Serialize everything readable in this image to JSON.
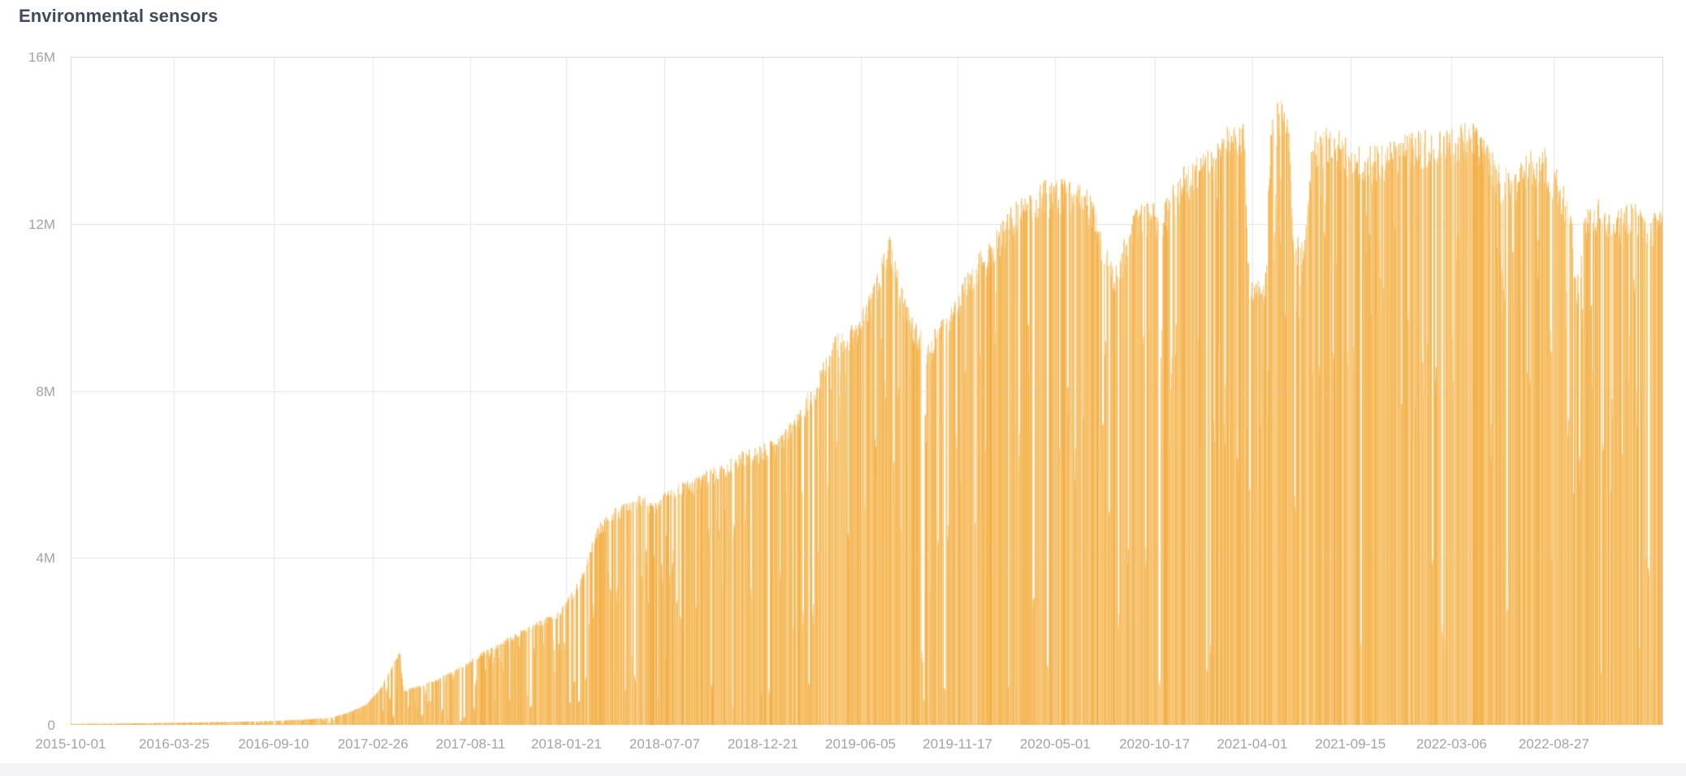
{
  "panel": {
    "title": "Environmental sensors"
  },
  "chart_data": {
    "type": "bar",
    "title": "Environmental sensors",
    "legend": false,
    "grid": true,
    "x_axis": {
      "type": "time-category-daily",
      "start": "2015-10-01",
      "end": "2023-03-01",
      "tick_interval_days": 168,
      "tick_labels": [
        "2015-10-01",
        "2016-03-25",
        "2016-09-10",
        "2017-02-26",
        "2017-08-11",
        "2018-01-21",
        "2018-07-07",
        "2018-12-21",
        "2019-06-05",
        "2019-11-17",
        "2020-05-01",
        "2020-10-17",
        "2021-04-01",
        "2021-09-15",
        "2022-03-06",
        "2022-08-27"
      ]
    },
    "y_axis": {
      "tick_labels": [
        "0",
        "4M",
        "8M",
        "12M",
        "16M"
      ],
      "tick_values_millions": [
        0,
        4,
        8,
        12,
        16
      ],
      "ylim_millions": [
        0,
        16
      ]
    },
    "series": [
      {
        "name": "Environmental sensors",
        "unit": "count",
        "values_are": "daily bars; envelope_points_millions samples the upper envelope [date, millions]",
        "envelope_points_millions": [
          [
            "2015-10-01",
            0.02
          ],
          [
            "2015-12-01",
            0.03
          ],
          [
            "2016-02-01",
            0.04
          ],
          [
            "2016-05-01",
            0.06
          ],
          [
            "2016-08-01",
            0.08
          ],
          [
            "2016-09-15",
            0.1
          ],
          [
            "2016-11-01",
            0.13
          ],
          [
            "2016-12-15",
            0.17
          ],
          [
            "2017-01-15",
            0.3
          ],
          [
            "2017-02-15",
            0.5
          ],
          [
            "2017-03-10",
            0.9
          ],
          [
            "2017-04-12",
            1.81
          ],
          [
            "2017-04-18",
            0.83
          ],
          [
            "2017-05-15",
            0.95
          ],
          [
            "2017-06-15",
            1.1
          ],
          [
            "2017-07-20",
            1.38
          ],
          [
            "2017-09-05",
            1.8
          ],
          [
            "2017-10-20",
            2.15
          ],
          [
            "2017-12-05",
            2.5
          ],
          [
            "2018-01-10",
            2.75
          ],
          [
            "2018-02-15",
            3.6
          ],
          [
            "2018-03-15",
            4.8
          ],
          [
            "2018-04-20",
            5.3
          ],
          [
            "2018-05-25",
            5.55
          ],
          [
            "2018-06-15",
            5.35
          ],
          [
            "2018-07-10",
            5.65
          ],
          [
            "2018-09-05",
            6.0
          ],
          [
            "2018-10-20",
            6.35
          ],
          [
            "2018-11-15",
            6.6
          ],
          [
            "2018-12-25",
            6.75
          ],
          [
            "2019-01-20",
            6.95
          ],
          [
            "2019-02-20",
            7.6
          ],
          [
            "2019-03-20",
            8.35
          ],
          [
            "2019-04-25",
            9.4
          ],
          [
            "2019-05-25",
            9.65
          ],
          [
            "2019-06-10",
            10.1
          ],
          [
            "2019-07-05",
            10.9
          ],
          [
            "2019-07-22",
            11.9
          ],
          [
            "2019-08-05",
            11.0
          ],
          [
            "2019-09-01",
            9.8
          ],
          [
            "2019-09-25",
            9.2
          ],
          [
            "2019-11-01",
            9.95
          ],
          [
            "2019-12-10",
            11.1
          ],
          [
            "2020-01-10",
            11.65
          ],
          [
            "2020-02-28",
            12.7
          ],
          [
            "2020-04-10",
            13.05
          ],
          [
            "2020-06-20",
            13.1
          ],
          [
            "2020-07-20",
            11.8
          ],
          [
            "2020-08-10",
            11.0
          ],
          [
            "2020-09-15",
            12.5
          ],
          [
            "2020-11-01",
            12.55
          ],
          [
            "2020-12-01",
            13.35
          ],
          [
            "2021-01-10",
            13.8
          ],
          [
            "2021-02-20",
            14.4
          ],
          [
            "2021-03-18",
            14.5
          ],
          [
            "2021-03-26",
            10.9
          ],
          [
            "2021-04-22",
            10.5
          ],
          [
            "2021-05-03",
            14.7
          ],
          [
            "2021-05-20",
            15.2
          ],
          [
            "2021-06-03",
            14.6
          ],
          [
            "2021-06-08",
            11.8
          ],
          [
            "2021-06-28",
            11.6
          ],
          [
            "2021-07-12",
            14.2
          ],
          [
            "2021-08-15",
            14.4
          ],
          [
            "2021-09-15",
            14.0
          ],
          [
            "2021-10-20",
            13.9
          ],
          [
            "2021-12-01",
            14.1
          ],
          [
            "2022-01-15",
            14.3
          ],
          [
            "2022-03-01",
            14.3
          ],
          [
            "2022-04-15",
            14.55
          ],
          [
            "2022-05-25",
            13.45
          ],
          [
            "2022-06-20",
            13.3
          ],
          [
            "2022-07-15",
            13.8
          ],
          [
            "2022-08-10",
            13.9
          ],
          [
            "2022-09-05",
            13.25
          ],
          [
            "2022-09-22",
            12.6
          ],
          [
            "2022-10-05",
            10.8
          ],
          [
            "2022-10-18",
            12.3
          ],
          [
            "2022-11-15",
            12.7
          ],
          [
            "2022-12-10",
            12.3
          ],
          [
            "2023-01-10",
            12.6
          ],
          [
            "2023-02-05",
            12.2
          ],
          [
            "2023-03-01",
            12.45
          ]
        ],
        "noise": {
          "seed": 1234567,
          "jitter": [
            0.93,
            1.0
          ],
          "medium_dip_prob": 0.085,
          "medium_dip_factor": [
            0.45,
            0.9
          ],
          "medium_dip_run_days": [
            1,
            3
          ],
          "deep_dip_prob": 0.02,
          "deep_dip_factor": [
            0.06,
            0.36
          ],
          "deep_dip_run_days": [
            1,
            4
          ]
        }
      }
    ],
    "style": {
      "bar_palette": [
        "#f6bd62",
        "#f3b24b",
        "#f8cb80",
        "#f5b857",
        "#f6bd62",
        "#efa93d",
        "#f8cb80",
        "#f6bd62",
        "#fad79a",
        "#f3b24b"
      ],
      "grid_color": "#e7e6f2",
      "border_color": "#d6d6e4",
      "grid_overlay_alpha": 0.15,
      "axis_label_color": "#9fa3ad",
      "title_color": "#414a5c",
      "background": "#ffffff"
    }
  }
}
